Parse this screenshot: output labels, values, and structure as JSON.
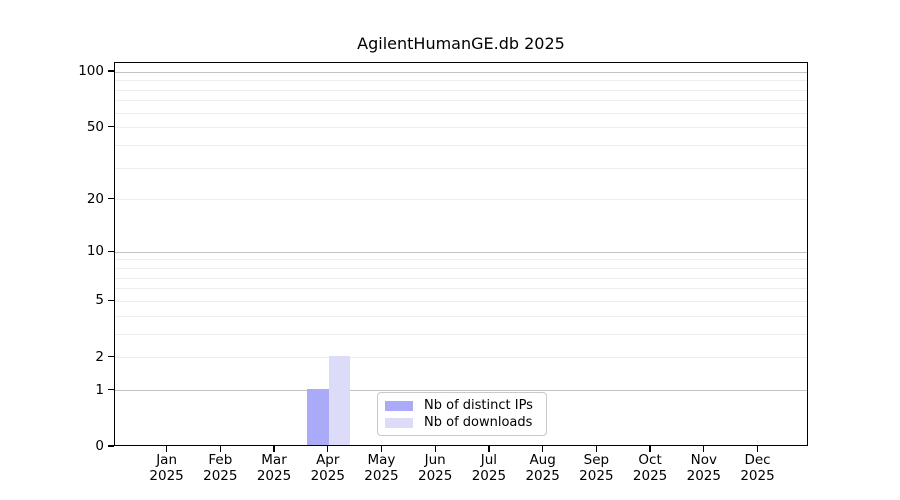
{
  "chart_data": {
    "type": "bar",
    "title": "AgilentHumanGE.db 2025",
    "categories": [
      {
        "month": "Jan",
        "year": "2025"
      },
      {
        "month": "Feb",
        "year": "2025"
      },
      {
        "month": "Mar",
        "year": "2025"
      },
      {
        "month": "Apr",
        "year": "2025"
      },
      {
        "month": "May",
        "year": "2025"
      },
      {
        "month": "Jun",
        "year": "2025"
      },
      {
        "month": "Jul",
        "year": "2025"
      },
      {
        "month": "Aug",
        "year": "2025"
      },
      {
        "month": "Sep",
        "year": "2025"
      },
      {
        "month": "Oct",
        "year": "2025"
      },
      {
        "month": "Nov",
        "year": "2025"
      },
      {
        "month": "Dec",
        "year": "2025"
      }
    ],
    "series": [
      {
        "name": "Nb of distinct IPs",
        "color": "#aaaaf8",
        "values": [
          0,
          0,
          0,
          1,
          0,
          0,
          0,
          0,
          0,
          0,
          0,
          0
        ]
      },
      {
        "name": "Nb of downloads",
        "color": "#dcdcf8",
        "values": [
          0,
          0,
          0,
          2,
          0,
          0,
          0,
          0,
          0,
          0,
          0,
          0
        ]
      }
    ],
    "y_axis": {
      "scale": "log10(1+y)",
      "tick_values": [
        0,
        1,
        2,
        5,
        10,
        20,
        50,
        100
      ],
      "major_gridlines": [
        1,
        10,
        100
      ],
      "minor_gridlines": [
        2,
        3,
        4,
        5,
        6,
        7,
        8,
        9,
        20,
        30,
        40,
        50,
        60,
        70,
        80,
        90
      ],
      "ymax": 112
    },
    "xlabel": "",
    "ylabel": "",
    "grid": true,
    "legend_position": "inside-bottom-center"
  },
  "colors": {
    "background": "#ffffff",
    "axis": "#000000",
    "grid_major": "#c3c3c3",
    "grid_minor": "#ededed",
    "legend_border": "#c9c9c9",
    "text": "#000000"
  }
}
